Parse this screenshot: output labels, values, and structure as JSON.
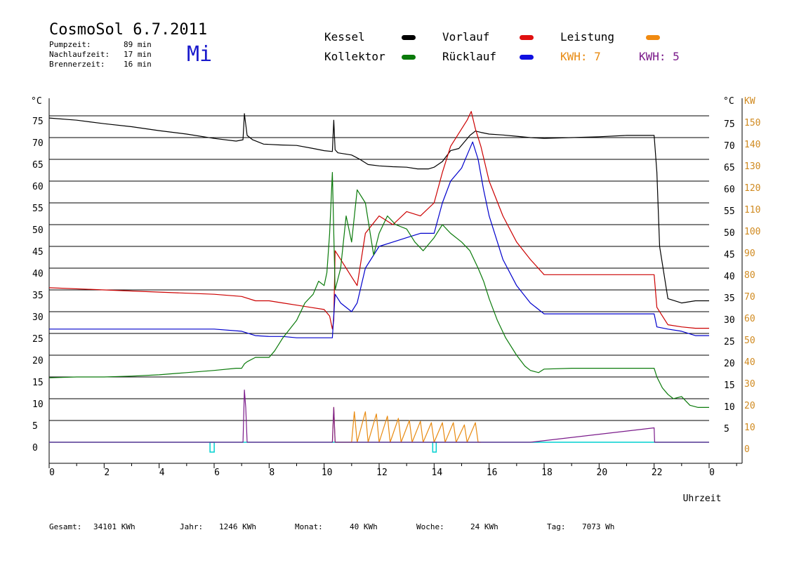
{
  "header": {
    "title": "CosmoSol 6.7.2011",
    "weekday": "Mi",
    "stats": [
      {
        "label": "Pumpzeit:",
        "value": "89 min"
      },
      {
        "label": "Nachlaufzeit:",
        "value": "17 min"
      },
      {
        "label": "Brennerzeit:",
        "value": "16 min"
      }
    ]
  },
  "legend": {
    "kessel": "Kessel",
    "kollektor": "Kollektor",
    "vorlauf": "Vorlauf",
    "ruecklauf": "Rücklauf",
    "leistung": "Leistung",
    "kwh_orange": "KWH: 7",
    "kwh_purple": "KWH: 5"
  },
  "footer": {
    "gesamt_label": "Gesamt:",
    "gesamt_value": "34101 KWh",
    "jahr_label": "Jahr:",
    "jahr_value": "1246 KWh",
    "monat_label": "Monat:",
    "monat_value": "40 KWh",
    "woche_label": "Woche:",
    "woche_value": "24 KWh",
    "tag_label": "Tag:",
    "tag_value": "7073 Wh"
  },
  "colors": {
    "kessel": "#000000",
    "kollektor": "#0a7a0a",
    "vorlauf": "#cc0000",
    "ruecklauf": "#0000cc",
    "leistung": "#e88a10",
    "kwh_purple": "#7a1a8a",
    "baseline": "#00d0d0",
    "axis_orange": "#d08a20"
  },
  "chart_data": {
    "type": "line",
    "xlabel": "Uhrzeit",
    "left_unit": "°C",
    "right_unit_black": "°C",
    "right_unit_orange": "KW",
    "xlim": [
      0,
      24
    ],
    "ylim": [
      0,
      75
    ],
    "x_ticks": [
      "0",
      "2",
      "4",
      "6",
      "8",
      "10",
      "12",
      "14",
      "16",
      "18",
      "20",
      "22",
      "0"
    ],
    "y_ticks_left": [
      "75",
      "70",
      "65",
      "60",
      "55",
      "50",
      "45",
      "40",
      "35",
      "30",
      "25",
      "20",
      "15",
      "10",
      "5",
      "0"
    ],
    "y_ticks_right": [
      "75",
      "70",
      "65",
      "60",
      "55",
      "50",
      "45",
      "40",
      "35",
      "30",
      "25",
      "20",
      "15",
      "10",
      "5"
    ],
    "y_ticks_right_kw": [
      "150",
      "140",
      "130",
      "120",
      "110",
      "100",
      "90",
      "80",
      "70",
      "60",
      "50",
      "40",
      "30",
      "20",
      "10",
      "0"
    ],
    "grid": true,
    "series": [
      {
        "name": "Kessel",
        "color": "#000000",
        "x": [
          0,
          1,
          2,
          3,
          4,
          5,
          6,
          6.8,
          7.05,
          7.1,
          7.2,
          7.4,
          7.8,
          8.4,
          9.0,
          9.6,
          10.0,
          10.3,
          10.35,
          10.4,
          10.5,
          11.0,
          11.3,
          11.6,
          12.0,
          12.5,
          13.0,
          13.4,
          13.8,
          14.0,
          14.3,
          14.6,
          14.9,
          15.1,
          15.3,
          15.5,
          15.7,
          16.0,
          16.5,
          17.0,
          17.5,
          18.0,
          19.0,
          20.0,
          21.0,
          22.0,
          22.1,
          22.2,
          22.5,
          23.0,
          23.5,
          24.0
        ],
        "y": [
          74.5,
          74.0,
          73.2,
          72.5,
          71.6,
          70.8,
          69.8,
          69.2,
          69.5,
          75.5,
          70.5,
          69.5,
          68.5,
          68.3,
          68.2,
          67.5,
          67.0,
          66.8,
          74,
          67.2,
          66.5,
          66.0,
          65.0,
          63.8,
          63.5,
          63.3,
          63.2,
          62.8,
          62.8,
          63.2,
          64.5,
          67.0,
          67.5,
          69.0,
          70.5,
          71.5,
          71.2,
          70.8,
          70.6,
          70.3,
          70.0,
          69.8,
          70.0,
          70.2,
          70.5,
          70.5,
          62,
          45,
          33,
          32,
          32.5,
          32.5
        ]
      },
      {
        "name": "Vorlauf",
        "color": "#cc0000",
        "x": [
          0,
          2,
          4,
          6,
          7,
          7.5,
          8,
          8.5,
          9,
          9.5,
          10,
          10.2,
          10.3,
          10.35,
          10.4,
          10.6,
          11.0,
          11.2,
          11.5,
          12,
          12.5,
          13,
          13.5,
          14,
          14.3,
          14.6,
          15.0,
          15.2,
          15.35,
          15.5,
          15.7,
          16.0,
          16.5,
          17,
          17.5,
          18,
          19,
          20,
          21,
          22,
          22.1,
          22.5,
          23,
          23.5,
          24
        ],
        "y": [
          35.5,
          35,
          34.5,
          34,
          33.5,
          32.5,
          32.5,
          32,
          31.5,
          31,
          30.5,
          29,
          26,
          28,
          44,
          42,
          38,
          36,
          48,
          52,
          50,
          53,
          52,
          55,
          62,
          68,
          72,
          74,
          76,
          72,
          68,
          60,
          52,
          46,
          42,
          38.5,
          38.5,
          38.5,
          38.5,
          38.5,
          31,
          27,
          26.5,
          26.2,
          26.2
        ]
      },
      {
        "name": "Rücklauf",
        "color": "#0000cc",
        "x": [
          0,
          2,
          4,
          6,
          7,
          7.5,
          8,
          8.5,
          9,
          9.5,
          10,
          10.2,
          10.3,
          10.4,
          10.6,
          11.0,
          11.2,
          11.5,
          12,
          12.5,
          13,
          13.5,
          14,
          14.3,
          14.6,
          15.0,
          15.2,
          15.4,
          15.6,
          15.8,
          16.0,
          16.5,
          17,
          17.5,
          18,
          19,
          20,
          21,
          22,
          22.1,
          22.5,
          23,
          23.5,
          24
        ],
        "y": [
          26,
          26,
          26,
          26,
          25.5,
          24.5,
          24.3,
          24.3,
          24,
          24,
          24,
          24,
          24,
          34,
          32,
          30,
          32,
          40,
          45,
          46,
          47,
          48,
          48,
          55,
          60,
          63,
          66,
          69,
          65,
          58,
          52,
          42,
          36,
          32,
          29.5,
          29.5,
          29.5,
          29.5,
          29.5,
          26.5,
          26,
          25.5,
          24.5,
          24.5
        ]
      },
      {
        "name": "Kollektor",
        "color": "#0a7a0a",
        "x": [
          0,
          1,
          2,
          3,
          4,
          5,
          6,
          6.8,
          7.0,
          7.1,
          7.2,
          7.5,
          8.0,
          8.2,
          8.5,
          9.0,
          9.3,
          9.6,
          9.8,
          10.0,
          10.1,
          10.2,
          10.3,
          10.4,
          10.6,
          10.8,
          11.0,
          11.2,
          11.5,
          11.8,
          12.0,
          12.3,
          12.6,
          13.0,
          13.3,
          13.6,
          14.0,
          14.3,
          14.6,
          15.0,
          15.3,
          15.6,
          15.8,
          16.0,
          16.3,
          16.6,
          17.0,
          17.3,
          17.5,
          17.8,
          18.0,
          19.0,
          20.0,
          21.0,
          22.0,
          22.1,
          22.3,
          22.5,
          22.7,
          23.0,
          23.3,
          23.6,
          24.0
        ],
        "y": [
          14.8,
          15,
          15,
          15.2,
          15.5,
          16,
          16.5,
          17,
          17,
          18,
          18.5,
          19.5,
          19.5,
          21,
          24,
          28,
          32,
          34,
          37,
          36,
          39,
          48,
          62,
          35,
          40,
          52,
          46,
          58,
          55,
          43,
          48,
          52,
          50,
          49,
          46,
          44,
          47,
          50,
          48,
          46,
          44,
          40,
          37,
          33,
          28,
          24,
          20,
          17.5,
          16.5,
          16,
          16.8,
          17,
          17,
          17,
          17,
          15,
          12.5,
          11,
          10,
          10.5,
          8.5,
          8,
          8
        ]
      },
      {
        "name": "Leistung",
        "color": "#e88a10",
        "x": [
          10.3,
          10.35,
          10.4,
          11.0,
          11.1,
          11.2,
          11.5,
          11.6,
          11.9,
          12.0,
          12.3,
          12.4,
          12.7,
          12.8,
          13.1,
          13.2,
          13.5,
          13.6,
          13.9,
          14.0,
          14.3,
          14.4,
          14.7,
          14.8,
          15.1,
          15.2,
          15.5,
          15.6,
          15.7
        ],
        "y": [
          0,
          8,
          0,
          0,
          7,
          0,
          7,
          0,
          6.5,
          0,
          6,
          0,
          5.5,
          0,
          5,
          0,
          4.8,
          0,
          4.5,
          0,
          4.5,
          0,
          4.5,
          0,
          4,
          0,
          4.5,
          0,
          0
        ]
      },
      {
        "name": "KWH",
        "color": "#7a1a8a",
        "x": [
          0,
          7.05,
          7.1,
          7.15,
          7.2,
          10.3,
          10.35,
          10.4,
          17.5,
          22.0,
          22.02,
          24
        ],
        "y": [
          0,
          0,
          12,
          8,
          0,
          0,
          8,
          0,
          0,
          3.3,
          0,
          0
        ]
      }
    ]
  }
}
